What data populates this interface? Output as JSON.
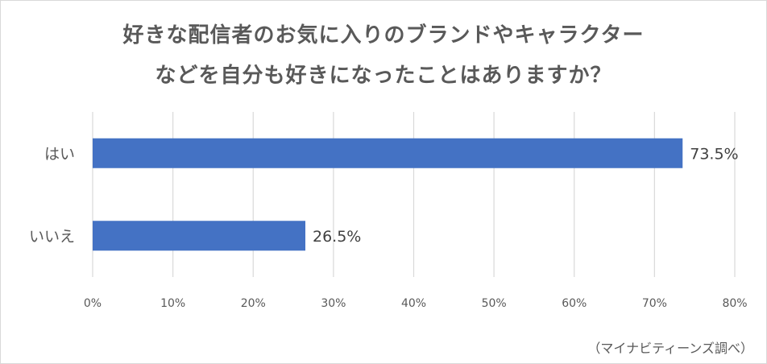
{
  "chart_data": {
    "type": "bar",
    "orientation": "horizontal",
    "title_lines": [
      "好きな配信者のお気に入りのブランドやキャラクター",
      "などを自分も好きになったことはありますか？"
    ],
    "categories": [
      "はい",
      "いいえ"
    ],
    "values": [
      73.5,
      26.5
    ],
    "value_labels": [
      "73.5%",
      "26.5%"
    ],
    "xlim": [
      0,
      80
    ],
    "xticks": [
      0,
      10,
      20,
      30,
      40,
      50,
      60,
      70,
      80
    ],
    "xtick_labels": [
      "0%",
      "10%",
      "20%",
      "30%",
      "40%",
      "50%",
      "60%",
      "70%",
      "80%"
    ],
    "grid": "vertical",
    "legend": "none",
    "bar_color": "#4472c4"
  },
  "source": "（マイナビティーンズ調べ）"
}
